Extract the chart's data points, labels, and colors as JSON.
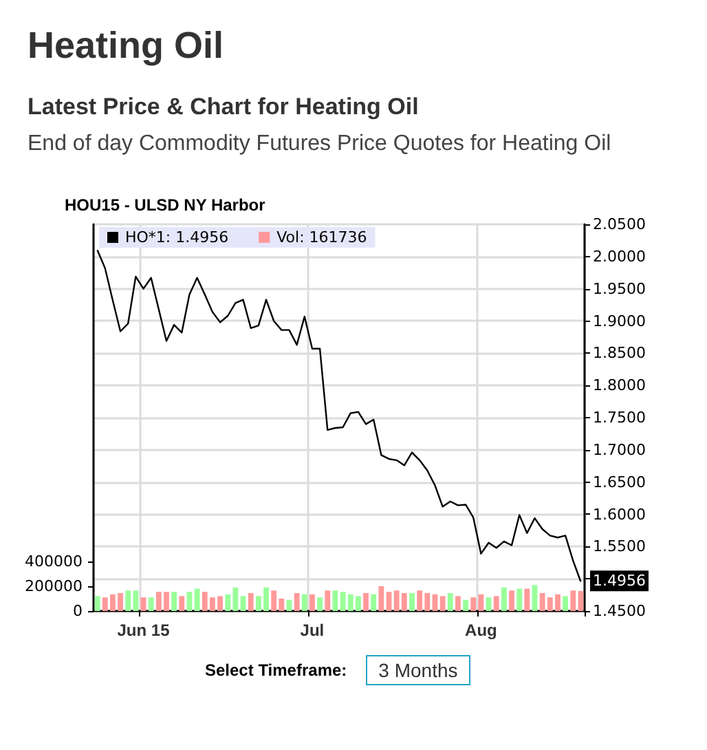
{
  "chart_data": {
    "type": "line",
    "title": "Heating Oil",
    "subtitle": "Latest Price & Chart for Heating Oil",
    "annotations": [
      "End of day Commodity Futures Price Quotes for Heating Oil",
      "HOU15 - ULSD NY Harbor",
      "Select Timeframe:",
      "3 Months"
    ],
    "categories": [
      null,
      null,
      null,
      null,
      null,
      null,
      "Jun 15",
      null,
      null,
      null,
      null,
      null,
      null,
      null,
      null,
      null,
      null,
      null,
      null,
      null,
      null,
      null,
      null,
      null,
      null,
      null,
      null,
      null,
      "Jul",
      null,
      null,
      null,
      null,
      null,
      null,
      null,
      null,
      null,
      null,
      null,
      null,
      null,
      null,
      null,
      null,
      null,
      null,
      null,
      null,
      null,
      "Aug",
      null,
      null,
      null,
      null,
      null,
      null,
      null,
      null,
      null,
      null,
      null,
      null,
      null
    ],
    "series": [
      {
        "name": "HO*1: 1.4956",
        "color": "#000000",
        "axis": "y2",
        "values": [
          2.01,
          1.982,
          1.932,
          1.884,
          1.896,
          1.969,
          1.95,
          1.967,
          1.918,
          1.869,
          1.894,
          1.882,
          1.941,
          1.967,
          1.941,
          1.914,
          1.898,
          1.908,
          1.928,
          1.933,
          1.889,
          1.893,
          1.933,
          1.9,
          1.886,
          1.886,
          1.863,
          1.907,
          1.857,
          1.857,
          1.731,
          1.734,
          1.735,
          1.757,
          1.759,
          1.74,
          1.747,
          1.692,
          1.686,
          1.684,
          1.676,
          1.696,
          1.684,
          1.668,
          1.645,
          1.612,
          1.62,
          1.614,
          1.615,
          1.595,
          1.539,
          1.556,
          1.548,
          1.558,
          1.552,
          1.599,
          1.571,
          1.594,
          1.577,
          1.567,
          1.564,
          1.567,
          1.528,
          1.4956
        ],
        "value_labels": [
          null,
          null,
          null,
          null,
          null,
          null,
          null,
          null,
          null,
          null,
          null,
          null,
          null,
          null,
          null,
          null,
          null,
          null,
          null,
          null,
          null,
          null,
          null,
          null,
          null,
          null,
          null,
          null,
          null,
          null,
          null,
          null,
          null,
          null,
          null,
          null,
          null,
          null,
          null,
          null,
          null,
          null,
          null,
          null,
          null,
          null,
          null,
          null,
          null,
          null,
          null,
          null,
          null,
          null,
          null,
          null,
          null,
          null,
          null,
          null,
          null,
          null,
          null,
          "1.4956"
        ]
      },
      {
        "name": "Vol: 161736",
        "type": "bar",
        "color": "#ff9999",
        "values": [
          120000,
          110000,
          135000,
          145000,
          165000,
          165000,
          110000,
          110000,
          155000,
          155000,
          155000,
          120000,
          155000,
          180000,
          155000,
          110000,
          120000,
          135000,
          190000,
          120000,
          145000,
          120000,
          190000,
          165000,
          100000,
          90000,
          145000,
          135000,
          135000,
          110000,
          165000,
          165000,
          155000,
          135000,
          120000,
          145000,
          135000,
          200000,
          155000,
          165000,
          145000,
          145000,
          165000,
          145000,
          135000,
          120000,
          145000,
          120000,
          90000,
          110000,
          135000,
          110000,
          120000,
          190000,
          165000,
          180000,
          180000,
          210000,
          145000,
          110000,
          135000,
          120000,
          165000,
          161736
        ],
        "colors": [
          "#99ff99",
          "#ff9999",
          "#ff9999",
          "#ff9999",
          "#99ff99",
          "#99ff99",
          "#ff9999",
          "#99ff99",
          "#ff9999",
          "#ff9999",
          "#99ff99",
          "#ff9999",
          "#99ff99",
          "#99ff99",
          "#ff9999",
          "#ff9999",
          "#ff9999",
          "#99ff99",
          "#99ff99",
          "#99ff99",
          "#ff9999",
          "#99ff99",
          "#99ff99",
          "#ff9999",
          "#ff9999",
          "#99ff99",
          "#ff9999",
          "#99ff99",
          "#ff9999",
          "#99ff99",
          "#ff9999",
          "#99ff99",
          "#99ff99",
          "#99ff99",
          "#99ff99",
          "#ff9999",
          "#99ff99",
          "#ff9999",
          "#ff9999",
          "#ff9999",
          "#ff9999",
          "#99ff99",
          "#ff9999",
          "#ff9999",
          "#ff9999",
          "#ff9999",
          "#99ff99",
          "#ff9999",
          "#99ff99",
          "#ff9999",
          "#ff9999",
          "#99ff99",
          "#ff9999",
          "#99ff99",
          "#ff9999",
          "#99ff99",
          "#ff9999",
          "#99ff99",
          "#ff9999",
          "#ff9999",
          "#ff9999",
          "#99ff99",
          "#ff9999",
          "#ff9999"
        ]
      }
    ],
    "ylim": [
      0,
      3120000
    ],
    "yticks": [
      0,
      200000,
      400000
    ],
    "y2lim": [
      1.45,
      2.05
    ],
    "y2ticks": [
      {
        "value": 1.45,
        "label": "1.4500"
      },
      {
        "value": 1.5,
        "label": null
      },
      {
        "value": 1.55,
        "label": "1.5500"
      },
      {
        "value": 1.6,
        "label": "1.6000"
      },
      {
        "value": 1.65,
        "label": "1.6500"
      },
      {
        "value": 1.7,
        "label": "1.7000"
      },
      {
        "value": 1.75,
        "label": "1.7500"
      },
      {
        "value": 1.8,
        "label": "1.8000"
      },
      {
        "value": 1.85,
        "label": "1.8500"
      },
      {
        "value": 1.9,
        "label": "1.9000"
      },
      {
        "value": 1.95,
        "label": "1.9500"
      },
      {
        "value": 2.0,
        "label": "2.0000"
      },
      {
        "value": 2.05,
        "label": "2.0500"
      }
    ],
    "grid": true,
    "legend": "top left",
    "marker": "none"
  }
}
